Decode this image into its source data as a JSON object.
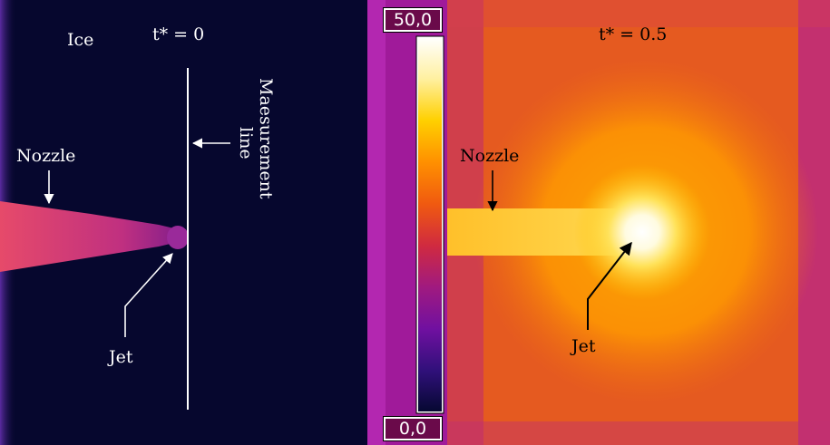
{
  "left_panel": {
    "time_label": "t* = 0",
    "ice_label": "Ice",
    "nozzle_label": "Nozzle",
    "jet_label": "Jet",
    "measurement_label_line1": "Maesurement",
    "measurement_label_line2": "line"
  },
  "right_panel": {
    "time_label": "t* = 0.5",
    "nozzle_label": "Nozzle",
    "jet_label": "Jet"
  },
  "color_scale": {
    "max_label": "50,0",
    "min_label": "0,0",
    "colormap": [
      "#ffffff",
      "#fff0a0",
      "#ffd000",
      "#ff9000",
      "#f05a10",
      "#d02a40",
      "#a01a80",
      "#7010a0",
      "#30107a",
      "#050830"
    ]
  }
}
